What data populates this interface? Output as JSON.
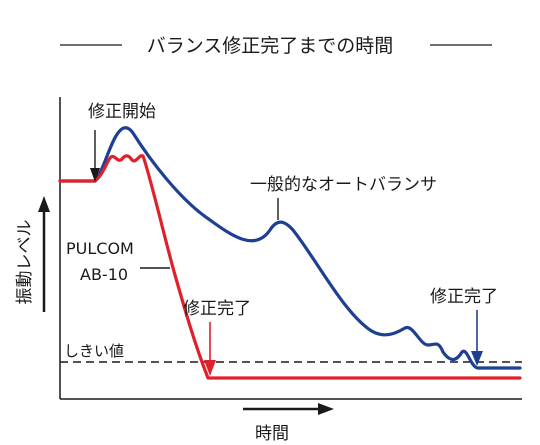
{
  "colors": {
    "general": "#1f3f93",
    "pulcom": "#e0202a",
    "text": "#1a1a1a"
  },
  "chart_data": {
    "type": "line",
    "title": "バランス修正完了までの時間",
    "xlabel": "時間",
    "ylabel": "振動レベル",
    "threshold_label": "しきい値",
    "annotations": {
      "correction_start": "修正開始",
      "general_label": "一般的なオートバランサ",
      "pulcom_label_line1": "PULCOM",
      "pulcom_label_line2": "AB-10",
      "pulcom_done": "修正完了",
      "general_done": "修正完了"
    },
    "series": [
      {
        "name": "一般的なオートバランサ"
      },
      {
        "name": "PULCOM AB-10"
      }
    ]
  }
}
